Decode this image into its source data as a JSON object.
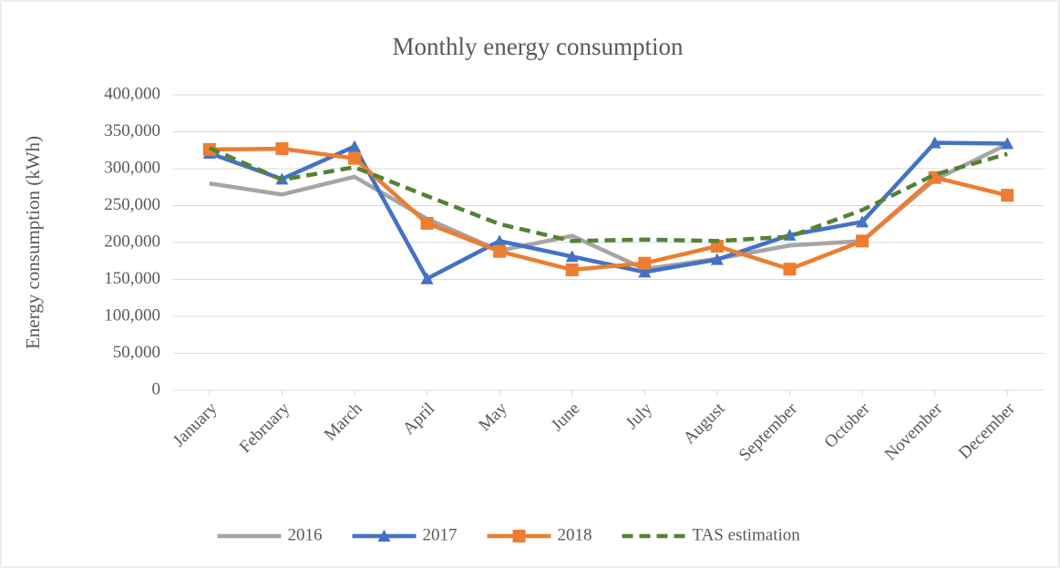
{
  "chart_data": {
    "type": "line",
    "title": "Monthly energy consumption",
    "y_label": "Energy consumption (kWh)",
    "categories": [
      "January",
      "February",
      "March",
      "April",
      "May",
      "June",
      "July",
      "August",
      "September",
      "October",
      "November",
      "December"
    ],
    "series": [
      {
        "name": "2016",
        "color": "#a5a5a5",
        "marker": "none",
        "dashed": false,
        "values": [
          280000,
          265000,
          289000,
          232000,
          189000,
          209000,
          164000,
          178000,
          196000,
          202000,
          285000,
          333000
        ]
      },
      {
        "name": "2017",
        "color": "#4472c4",
        "marker": "triangle",
        "dashed": false,
        "values": [
          321000,
          286000,
          330000,
          151000,
          202000,
          181000,
          160000,
          177000,
          210000,
          228000,
          335000,
          334000
        ]
      },
      {
        "name": "2018",
        "color": "#ed7d31",
        "marker": "square",
        "dashed": false,
        "values": [
          326000,
          327000,
          314000,
          226000,
          188000,
          163000,
          172000,
          195000,
          164000,
          202000,
          288000,
          264000
        ]
      },
      {
        "name": "TAS estimation",
        "color": "#548235",
        "marker": "none",
        "dashed": true,
        "values": [
          328000,
          285000,
          302000,
          263000,
          225000,
          202000,
          204000,
          202000,
          208000,
          244000,
          292000,
          320000
        ]
      }
    ],
    "ylim": [
      0,
      400000
    ],
    "yticks": [
      0,
      {
        "value": 50000,
        "label": "50,000"
      },
      {
        "value": 100000,
        "label": "100,000"
      },
      {
        "value": 150000,
        "label": "150,000"
      },
      {
        "value": 200000,
        "label": "200,000"
      },
      {
        "value": 250000,
        "label": "250,000"
      },
      {
        "value": 300000,
        "label": "300,000"
      },
      {
        "value": 350000,
        "label": "350,000"
      },
      {
        "value": 400000,
        "label": "400,000"
      }
    ],
    "grid": true,
    "legend": "bottom"
  }
}
